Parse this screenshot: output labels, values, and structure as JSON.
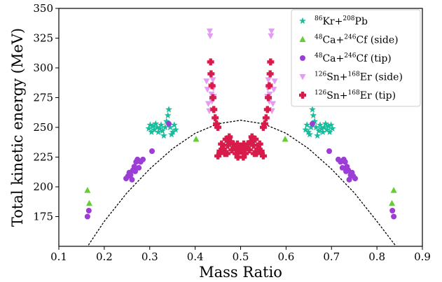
{
  "chart_data": {
    "type": "scatter",
    "xlabel": "Mass Ratio",
    "ylabel": "Total kinetic energy (MeV)",
    "xlim": [
      0.1,
      0.9
    ],
    "ylim": [
      150,
      350
    ],
    "xticks": [
      0.1,
      0.2,
      0.3,
      0.4,
      0.5,
      0.6,
      0.7,
      0.8,
      0.9
    ],
    "yticks": [
      175,
      200,
      225,
      250,
      275,
      300,
      325,
      350
    ],
    "xtick_labels": [
      "0.1",
      "0.2",
      "0.3",
      "0.4",
      "0.5",
      "0.6",
      "0.7",
      "0.8",
      "0.9"
    ],
    "ytick_labels": [
      "175",
      "200",
      "225",
      "250",
      "275",
      "300",
      "325",
      "350"
    ],
    "grid": false,
    "legend_position": "top-right",
    "curve": {
      "style": "dashed",
      "color": "#000000",
      "x": [
        0.165,
        0.2,
        0.25,
        0.3,
        0.35,
        0.4,
        0.45,
        0.5,
        0.55,
        0.6,
        0.65,
        0.7,
        0.75,
        0.8,
        0.84
      ],
      "y": [
        151,
        171,
        195,
        215,
        232,
        245,
        253,
        256,
        253,
        245,
        232,
        215,
        195,
        171,
        151
      ]
    },
    "series": [
      {
        "name": "86Kr+208Pb",
        "legend": {
          "a": "86",
          "b": "Kr+",
          "c": "208",
          "d": "Pb"
        },
        "marker": "star",
        "color": "#1abc9c",
        "points": [
          [
            0.298,
            249
          ],
          [
            0.301,
            252
          ],
          [
            0.304,
            246
          ],
          [
            0.307,
            251
          ],
          [
            0.31,
            248
          ],
          [
            0.313,
            253
          ],
          [
            0.316,
            250
          ],
          [
            0.319,
            246
          ],
          [
            0.322,
            249
          ],
          [
            0.325,
            252
          ],
          [
            0.328,
            247
          ],
          [
            0.331,
            243
          ],
          [
            0.334,
            250
          ],
          [
            0.337,
            255
          ],
          [
            0.34,
            260
          ],
          [
            0.342,
            265
          ],
          [
            0.345,
            250
          ],
          [
            0.348,
            244
          ],
          [
            0.351,
            246
          ],
          [
            0.354,
            252
          ],
          [
            0.357,
            248
          ],
          [
            0.643,
            248
          ],
          [
            0.646,
            252
          ],
          [
            0.649,
            246
          ],
          [
            0.652,
            244
          ],
          [
            0.655,
            250
          ],
          [
            0.658,
            265
          ],
          [
            0.66,
            260
          ],
          [
            0.663,
            255
          ],
          [
            0.666,
            250
          ],
          [
            0.669,
            243
          ],
          [
            0.672,
            247
          ],
          [
            0.675,
            252
          ],
          [
            0.678,
            249
          ],
          [
            0.681,
            246
          ],
          [
            0.684,
            250
          ],
          [
            0.687,
            253
          ],
          [
            0.69,
            248
          ],
          [
            0.693,
            251
          ],
          [
            0.696,
            246
          ],
          [
            0.699,
            252
          ],
          [
            0.702,
            249
          ]
        ]
      },
      {
        "name": "48Ca+246Cf (side)",
        "legend": {
          "a": "48",
          "b": "Ca+",
          "c": "246",
          "d": "Cf (side)"
        },
        "marker": "triangle-up",
        "color": "#66cc33",
        "points": [
          [
            0.163,
            197
          ],
          [
            0.167,
            186
          ],
          [
            0.402,
            240
          ],
          [
            0.598,
            240
          ],
          [
            0.833,
            186
          ],
          [
            0.837,
            197
          ]
        ]
      },
      {
        "name": "48Ca+246Cf (tip)",
        "legend": {
          "a": "48",
          "b": "Ca+",
          "c": "246",
          "d": "Cf (tip)"
        },
        "marker": "circle",
        "color": "#9b3dd6",
        "points": [
          [
            0.163,
            175
          ],
          [
            0.166,
            180
          ],
          [
            0.248,
            207
          ],
          [
            0.252,
            209
          ],
          [
            0.255,
            212
          ],
          [
            0.258,
            210
          ],
          [
            0.261,
            206
          ],
          [
            0.263,
            214
          ],
          [
            0.266,
            217
          ],
          [
            0.268,
            213
          ],
          [
            0.27,
            221
          ],
          [
            0.273,
            223
          ],
          [
            0.276,
            216
          ],
          [
            0.28,
            221
          ],
          [
            0.285,
            223
          ],
          [
            0.305,
            230
          ],
          [
            0.342,
            253
          ],
          [
            0.658,
            253
          ],
          [
            0.695,
            230
          ],
          [
            0.715,
            223
          ],
          [
            0.72,
            221
          ],
          [
            0.724,
            216
          ],
          [
            0.727,
            223
          ],
          [
            0.73,
            221
          ],
          [
            0.732,
            213
          ],
          [
            0.734,
            217
          ],
          [
            0.737,
            214
          ],
          [
            0.739,
            206
          ],
          [
            0.742,
            210
          ],
          [
            0.745,
            212
          ],
          [
            0.748,
            209
          ],
          [
            0.752,
            207
          ],
          [
            0.834,
            180
          ],
          [
            0.837,
            175
          ]
        ]
      },
      {
        "name": "126Sn+168Er (side)",
        "legend": {
          "a": "126",
          "b": "Sn+",
          "c": "168",
          "d": "Er (side)"
        },
        "marker": "triangle-down",
        "color": "#e39cf2",
        "points": [
          [
            0.425,
            289
          ],
          [
            0.427,
            282
          ],
          [
            0.429,
            270
          ],
          [
            0.431,
            264
          ],
          [
            0.432,
            331
          ],
          [
            0.433,
            327
          ],
          [
            0.434,
            294
          ],
          [
            0.435,
            285
          ],
          [
            0.436,
            278
          ],
          [
            0.437,
            272
          ],
          [
            0.438,
            265
          ],
          [
            0.439,
            290
          ],
          [
            0.44,
            283
          ],
          [
            0.441,
            276
          ],
          [
            0.559,
            276
          ],
          [
            0.56,
            283
          ],
          [
            0.561,
            290
          ],
          [
            0.562,
            265
          ],
          [
            0.563,
            272
          ],
          [
            0.564,
            278
          ],
          [
            0.565,
            285
          ],
          [
            0.566,
            294
          ],
          [
            0.567,
            327
          ],
          [
            0.568,
            331
          ],
          [
            0.569,
            264
          ],
          [
            0.571,
            270
          ],
          [
            0.573,
            282
          ],
          [
            0.575,
            289
          ]
        ]
      },
      {
        "name": "126Sn+168Er (tip)",
        "legend": {
          "a": "126",
          "b": "Sn+",
          "c": "168",
          "d": "Er (tip)"
        },
        "marker": "plus",
        "color": "#d81b4a",
        "points": [
          [
            0.434,
            305
          ],
          [
            0.435,
            295
          ],
          [
            0.437,
            285
          ],
          [
            0.439,
            275
          ],
          [
            0.441,
            265
          ],
          [
            0.444,
            258
          ],
          [
            0.447,
            253
          ],
          [
            0.45,
            250
          ],
          [
            0.55,
            250
          ],
          [
            0.553,
            253
          ],
          [
            0.556,
            258
          ],
          [
            0.559,
            265
          ],
          [
            0.561,
            275
          ],
          [
            0.563,
            285
          ],
          [
            0.565,
            295
          ],
          [
            0.566,
            305
          ],
          [
            0.45,
            226
          ],
          [
            0.455,
            230
          ],
          [
            0.458,
            236
          ],
          [
            0.462,
            232
          ],
          [
            0.465,
            228
          ],
          [
            0.468,
            240
          ],
          [
            0.472,
            235
          ],
          [
            0.475,
            242
          ],
          [
            0.478,
            238
          ],
          [
            0.481,
            231
          ],
          [
            0.484,
            236
          ],
          [
            0.487,
            233
          ],
          [
            0.49,
            228
          ],
          [
            0.493,
            236
          ],
          [
            0.496,
            232
          ],
          [
            0.498,
            234
          ],
          [
            0.5,
            230
          ],
          [
            0.502,
            234
          ],
          [
            0.504,
            232
          ],
          [
            0.507,
            236
          ],
          [
            0.51,
            228
          ],
          [
            0.513,
            233
          ],
          [
            0.516,
            236
          ],
          [
            0.519,
            231
          ],
          [
            0.522,
            238
          ],
          [
            0.525,
            242
          ],
          [
            0.528,
            235
          ],
          [
            0.532,
            240
          ],
          [
            0.535,
            228
          ],
          [
            0.538,
            232
          ],
          [
            0.542,
            236
          ],
          [
            0.545,
            230
          ],
          [
            0.55,
            226
          ],
          [
            0.494,
            225
          ],
          [
            0.506,
            225
          ],
          [
            0.47,
            228
          ],
          [
            0.53,
            228
          ]
        ]
      }
    ]
  }
}
